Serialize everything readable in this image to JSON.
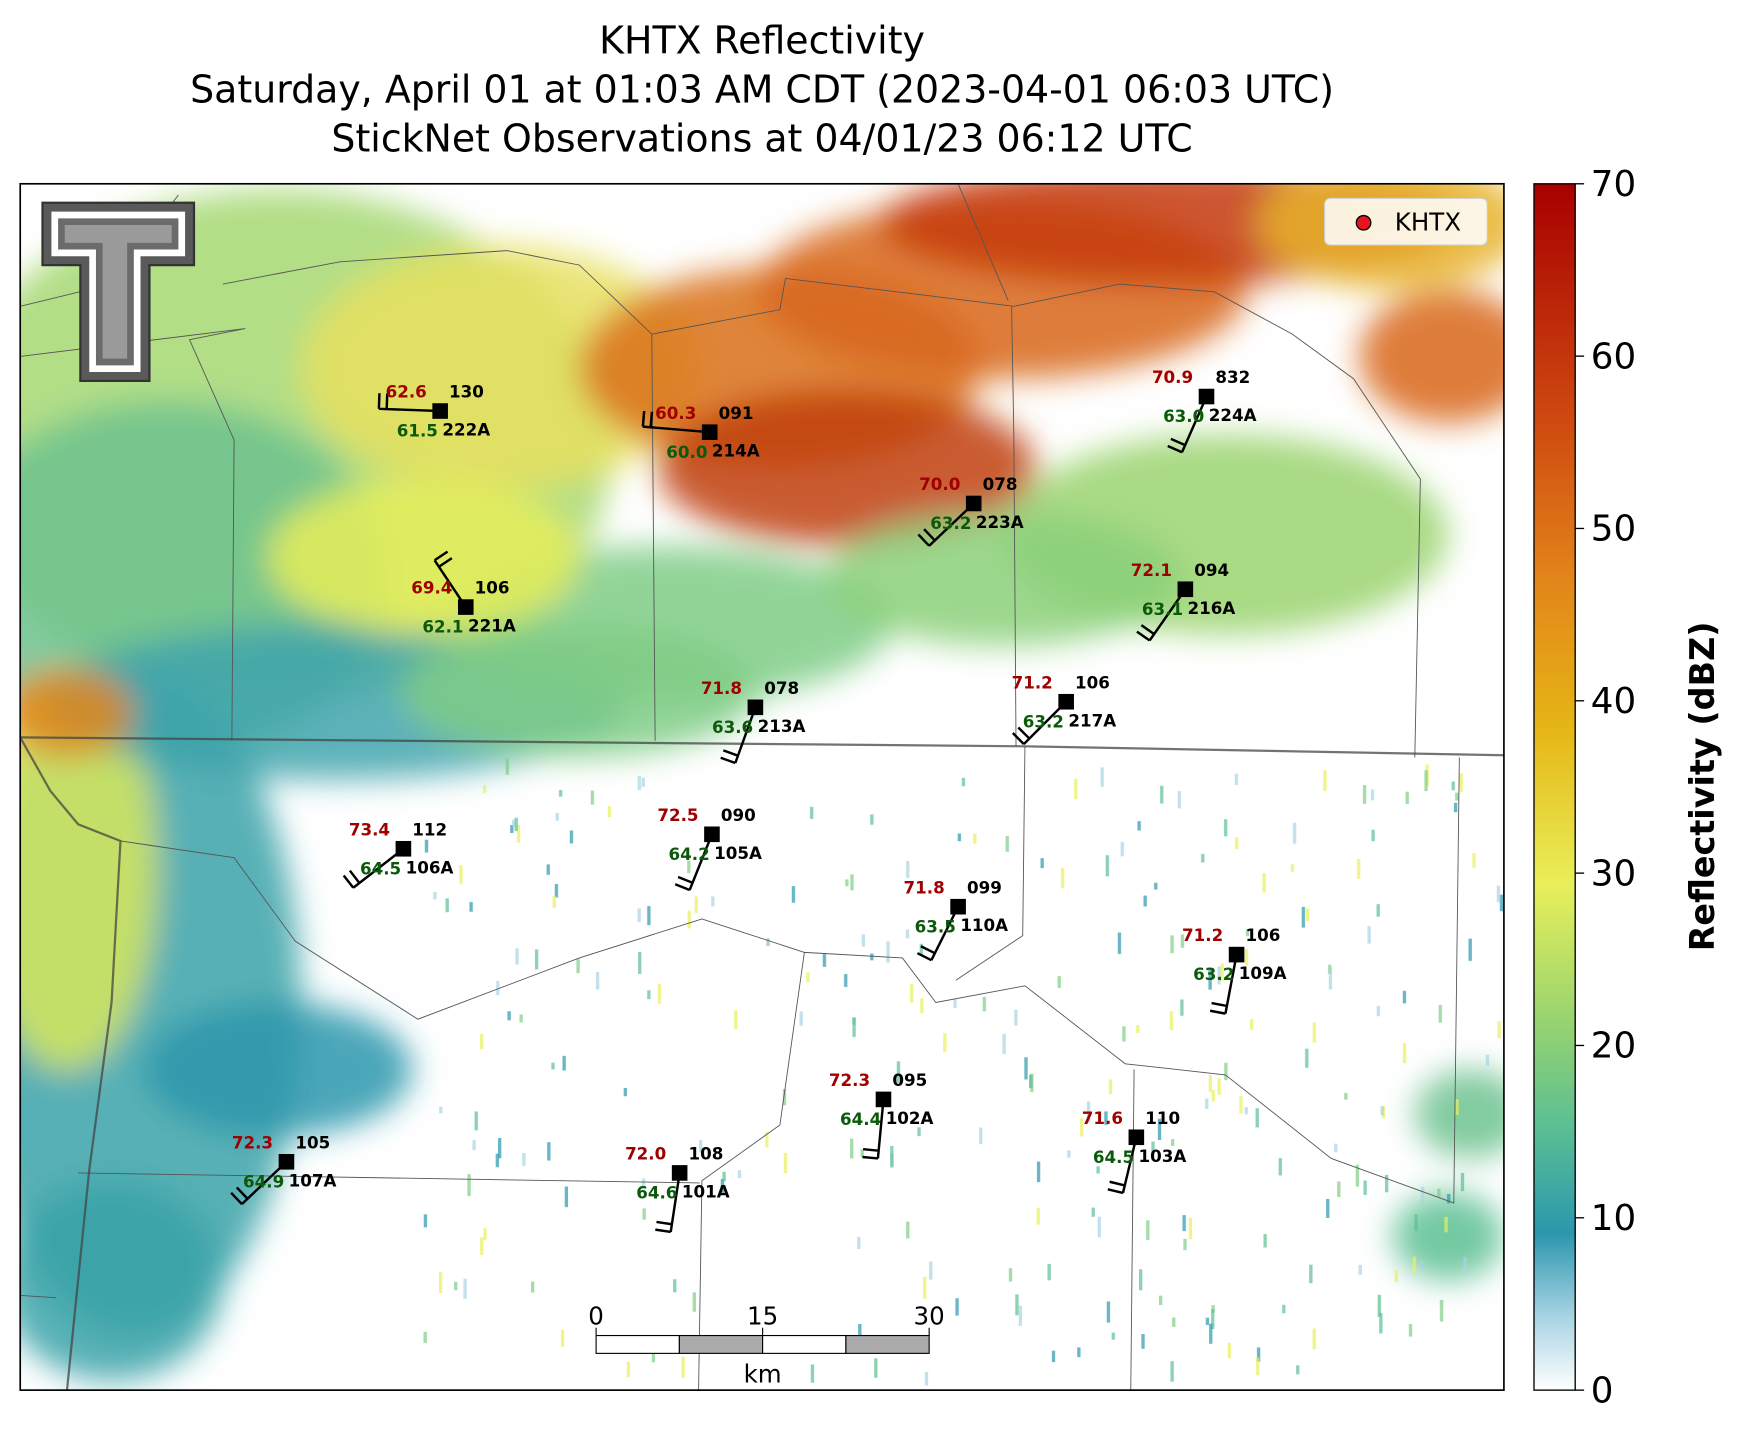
{
  "header": {
    "title_lines": [
      "KHTX Reflectivity",
      "Saturday, April 01 at 01:03 AM CDT (2023-04-01 06:03 UTC)",
      "StickNet Observations at 04/01/23 06:12 UTC"
    ]
  },
  "legend": {
    "label": "KHTX",
    "color": "#e8141c"
  },
  "colorbar": {
    "label": "Reflectivity (dBZ)",
    "lim": [
      0,
      70
    ],
    "ticks": [
      0,
      10,
      20,
      30,
      40,
      50,
      60,
      70
    ]
  },
  "scale_bar": {
    "ticks": [
      0,
      15,
      30
    ],
    "unit": "km"
  },
  "stations": [
    {
      "id": "222A",
      "temperature": "62.6",
      "dewpoint": "61.5",
      "pressure": "130"
    },
    {
      "id": "214A",
      "temperature": "60.3",
      "dewpoint": "60.0",
      "pressure": "091"
    },
    {
      "id": "224A",
      "temperature": "70.9",
      "dewpoint": "63.0",
      "pressure": "832"
    },
    {
      "id": "223A",
      "temperature": "70.0",
      "dewpoint": "63.2",
      "pressure": "078"
    },
    {
      "id": "221A",
      "temperature": "69.4",
      "dewpoint": "62.1",
      "pressure": "106"
    },
    {
      "id": "216A",
      "temperature": "72.1",
      "dewpoint": "63.1",
      "pressure": "094"
    },
    {
      "id": "213A",
      "temperature": "71.8",
      "dewpoint": "63.6",
      "pressure": "078"
    },
    {
      "id": "217A",
      "temperature": "71.2",
      "dewpoint": "63.2",
      "pressure": "106"
    },
    {
      "id": "106A",
      "temperature": "73.4",
      "dewpoint": "64.5",
      "pressure": "112"
    },
    {
      "id": "105A",
      "temperature": "72.5",
      "dewpoint": "64.2",
      "pressure": "090"
    },
    {
      "id": "110A",
      "temperature": "71.8",
      "dewpoint": "63.5",
      "pressure": "099"
    },
    {
      "id": "109A",
      "temperature": "71.2",
      "dewpoint": "63.2",
      "pressure": "106"
    },
    {
      "id": "102A",
      "temperature": "72.3",
      "dewpoint": "64.4",
      "pressure": "095"
    },
    {
      "id": "103A",
      "temperature": "71.6",
      "dewpoint": "64.5",
      "pressure": "110"
    },
    {
      "id": "107A",
      "temperature": "72.3",
      "dewpoint": "64.9",
      "pressure": "105"
    },
    {
      "id": "101A",
      "temperature": "72.0",
      "dewpoint": "64.6",
      "pressure": "108"
    }
  ]
}
